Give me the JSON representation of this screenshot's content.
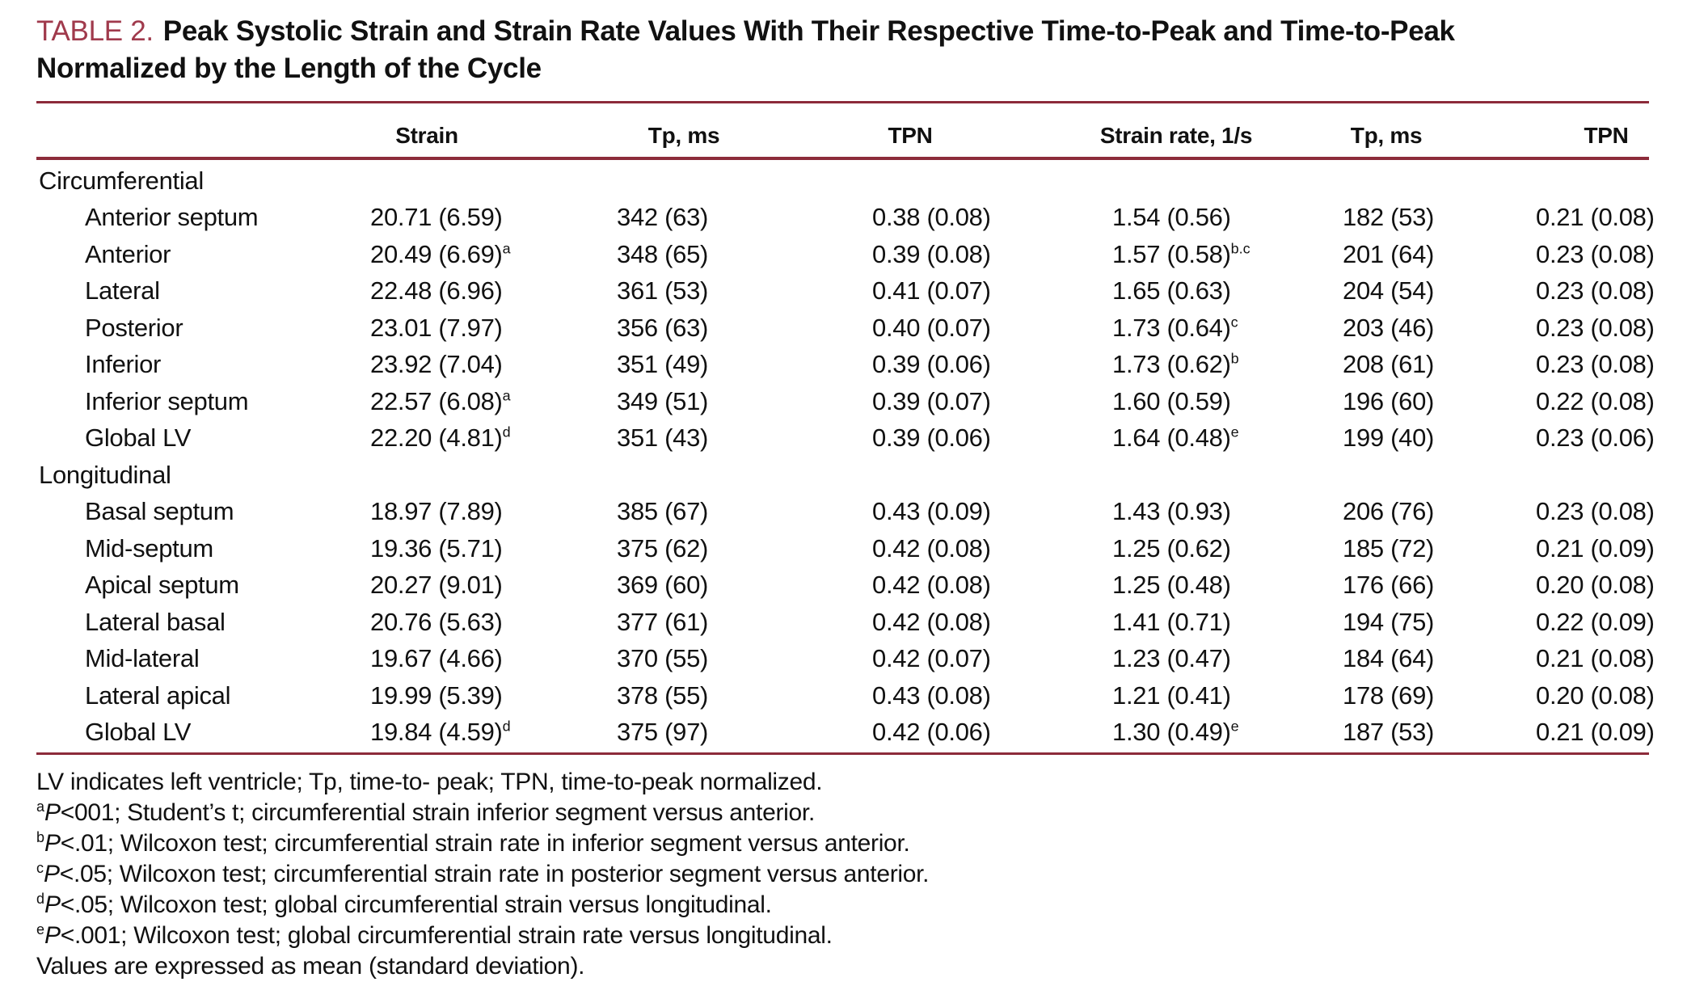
{
  "colors": {
    "rule": "#8c2b3a",
    "table_label": "#a03a4c"
  },
  "table": {
    "label": "TABLE 2.",
    "title_lines": [
      "Peak Systolic Strain and Strain Rate Values With Their Respective Time-to-Peak and Time-to-Peak",
      "Normalized by the Length of the Cycle"
    ],
    "columns": [
      "Strain",
      "Tp, ms",
      "TPN",
      "Strain rate, 1/s",
      "Tp, ms",
      "TPN"
    ],
    "sections": [
      {
        "name": "Circumferential",
        "rows": [
          {
            "label": "Anterior septum",
            "strain": "20.71 (6.59)",
            "strain_sup": "",
            "tp1": "342 (63)",
            "tpn1": "0.38 (0.08)",
            "strain_rate": "1.54 (0.56)",
            "sr_sup": "",
            "tp2": "182 (53)",
            "tpn2": "0.21 (0.08)"
          },
          {
            "label": "Anterior",
            "strain": "20.49 (6.69)",
            "strain_sup": "a",
            "tp1": "348 (65)",
            "tpn1": "0.39 (0.08)",
            "strain_rate": "1.57 (0.58)",
            "sr_sup": "b.c",
            "tp2": "201 (64)",
            "tpn2": "0.23 (0.08)"
          },
          {
            "label": "Lateral",
            "strain": "22.48 (6.96)",
            "strain_sup": "",
            "tp1": "361 (53)",
            "tpn1": "0.41 (0.07)",
            "strain_rate": "1.65 (0.63)",
            "sr_sup": "",
            "tp2": "204 (54)",
            "tpn2": "0.23 (0.08)"
          },
          {
            "label": "Posterior",
            "strain": "23.01 (7.97)",
            "strain_sup": "",
            "tp1": "356 (63)",
            "tpn1": "0.40 (0.07)",
            "strain_rate": "1.73 (0.64)",
            "sr_sup": "c",
            "tp2": "203 (46)",
            "tpn2": "0.23 (0.08)"
          },
          {
            "label": "Inferior",
            "strain": "23.92 (7.04)",
            "strain_sup": "",
            "tp1": "351 (49)",
            "tpn1": "0.39 (0.06)",
            "strain_rate": "1.73 (0.62)",
            "sr_sup": "b",
            "tp2": "208 (61)",
            "tpn2": "0.23 (0.08)"
          },
          {
            "label": "Inferior septum",
            "strain": "22.57 (6.08)",
            "strain_sup": "a",
            "tp1": "349 (51)",
            "tpn1": "0.39 (0.07)",
            "strain_rate": "1.60 (0.59)",
            "sr_sup": "",
            "tp2": "196 (60)",
            "tpn2": "0.22 (0.08)"
          },
          {
            "label": "Global LV",
            "strain": "22.20 (4.81)",
            "strain_sup": "d",
            "tp1": "351 (43)",
            "tpn1": "0.39 (0.06)",
            "strain_rate": "1.64 (0.48)",
            "sr_sup": "e",
            "tp2": "199 (40)",
            "tpn2": "0.23 (0.06)"
          }
        ]
      },
      {
        "name": "Longitudinal",
        "rows": [
          {
            "label": "Basal septum",
            "strain": "18.97 (7.89)",
            "strain_sup": "",
            "tp1": "385 (67)",
            "tpn1": "0.43 (0.09)",
            "strain_rate": "1.43 (0.93)",
            "sr_sup": "",
            "tp2": "206 (76)",
            "tpn2": "0.23 (0.08)"
          },
          {
            "label": "Mid-septum",
            "strain": "19.36 (5.71)",
            "strain_sup": "",
            "tp1": "375 (62)",
            "tpn1": "0.42 (0.08)",
            "strain_rate": "1.25 (0.62)",
            "sr_sup": "",
            "tp2": "185 (72)",
            "tpn2": "0.21 (0.09)"
          },
          {
            "label": "Apical septum",
            "strain": "20.27 (9.01)",
            "strain_sup": "",
            "tp1": "369 (60)",
            "tpn1": "0.42 (0.08)",
            "strain_rate": "1.25 (0.48)",
            "sr_sup": "",
            "tp2": "176 (66)",
            "tpn2": "0.20 (0.08)"
          },
          {
            "label": "Lateral basal",
            "strain": "20.76 (5.63)",
            "strain_sup": "",
            "tp1": "377 (61)",
            "tpn1": "0.42 (0.08)",
            "strain_rate": "1.41 (0.71)",
            "sr_sup": "",
            "tp2": "194 (75)",
            "tpn2": "0.22 (0.09)"
          },
          {
            "label": "Mid-lateral",
            "strain": "19.67 (4.66)",
            "strain_sup": "",
            "tp1": "370 (55)",
            "tpn1": "0.42 (0.07)",
            "strain_rate": "1.23 (0.47)",
            "sr_sup": "",
            "tp2": "184 (64)",
            "tpn2": "0.21 (0.08)"
          },
          {
            "label": "Lateral apical",
            "strain": "19.99 (5.39)",
            "strain_sup": "",
            "tp1": "378 (55)",
            "tpn1": "0.43 (0.08)",
            "strain_rate": "1.21 (0.41)",
            "sr_sup": "",
            "tp2": "178 (69)",
            "tpn2": "0.20 (0.08)"
          },
          {
            "label": "Global LV",
            "strain": "19.84 (4.59)",
            "strain_sup": "d",
            "tp1": "375 (97)",
            "tpn1": "0.42 (0.06)",
            "strain_rate": "1.30 (0.49)",
            "sr_sup": "e",
            "tp2": "187 (53)",
            "tpn2": "0.21 (0.09)"
          }
        ]
      }
    ],
    "footnotes": [
      {
        "sup": "",
        "text": "LV indicates left ventricle; Tp, time-to- peak; TPN, time-to-peak normalized."
      },
      {
        "sup": "a",
        "text": "P<001; Student’s t; circumferential strain inferior segment versus anterior."
      },
      {
        "sup": "b",
        "text": "P<.01; Wilcoxon test; circumferential strain rate in inferior segment versus anterior."
      },
      {
        "sup": "c",
        "text": "P<.05; Wilcoxon test; circumferential strain rate in posterior segment versus anterior."
      },
      {
        "sup": "d",
        "text": "P<.05; Wilcoxon test; global circumferential strain versus longitudinal."
      },
      {
        "sup": "e",
        "text": "P<.001; Wilcoxon test; global circumferential strain rate versus longitudinal."
      },
      {
        "sup": "",
        "text": "Values are expressed as mean (standard deviation)."
      }
    ]
  }
}
